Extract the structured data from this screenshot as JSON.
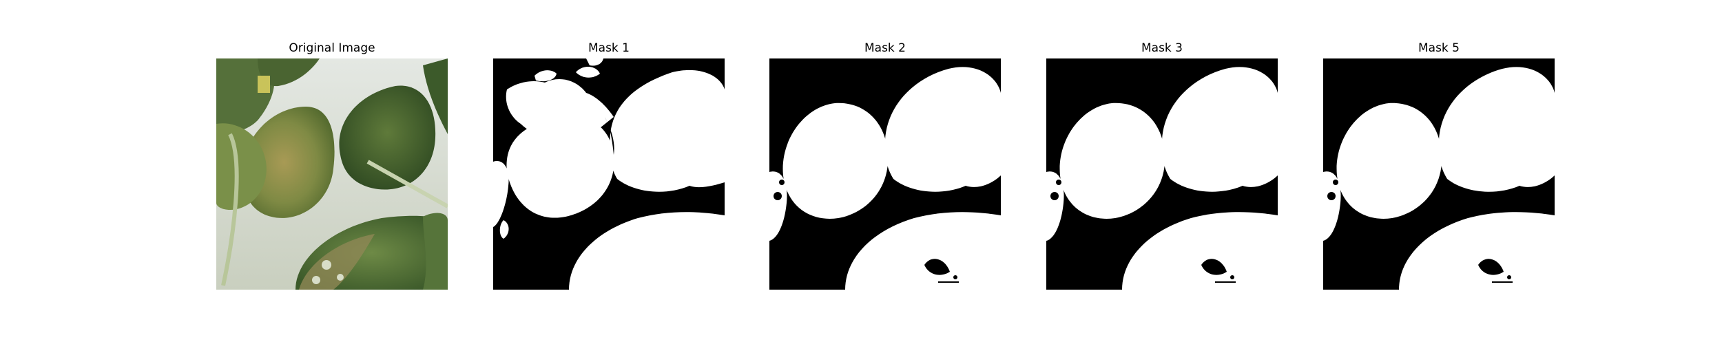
{
  "panels": [
    {
      "title": "Original Image",
      "kind": "photo-leaves"
    },
    {
      "title": "Mask 1",
      "kind": "binary-mask"
    },
    {
      "title": "Mask 2",
      "kind": "binary-mask"
    },
    {
      "title": "Mask 3",
      "kind": "binary-mask"
    },
    {
      "title": "Mask 5",
      "kind": "binary-mask"
    }
  ],
  "colors": {
    "mask_background": "#000000",
    "mask_foreground": "#ffffff",
    "leaf_dark": "#3f5a2c",
    "leaf_mid": "#6f8a45",
    "leaf_light": "#a9b879",
    "backdrop": "#d9ded6"
  }
}
